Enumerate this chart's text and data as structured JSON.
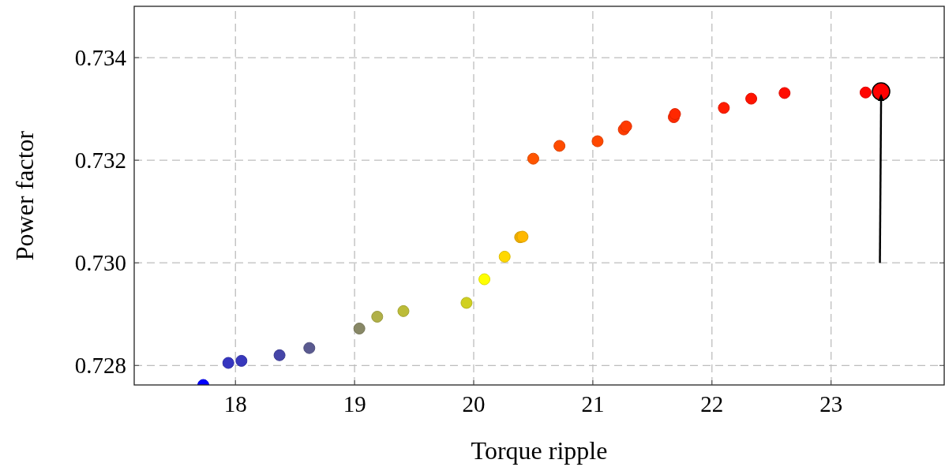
{
  "chart_data": {
    "type": "scatter",
    "xlabel": "Torque ripple",
    "ylabel": "Power factor",
    "xlim": [
      17.15,
      23.95
    ],
    "ylim": [
      0.72762,
      0.735
    ],
    "xticks": [
      18,
      19,
      20,
      21,
      22,
      23
    ],
    "yticks": [
      {
        "value": 0.728,
        "label": "0.728"
      },
      {
        "value": 0.73,
        "label": "0.730"
      },
      {
        "value": 0.732,
        "label": "0.732"
      },
      {
        "value": 0.734,
        "label": "0.734"
      }
    ],
    "grid": true,
    "marker": "circle",
    "series": [
      {
        "x": [
          17.73,
          17.94,
          18.05,
          18.37,
          18.62,
          19.04,
          19.19,
          19.41,
          19.94,
          20.09,
          20.26,
          20.39,
          20.41,
          20.5,
          20.72,
          21.04,
          21.26,
          21.28,
          21.68,
          21.69,
          22.1,
          22.33,
          22.61,
          23.29
        ],
        "values": [
          0.72762,
          0.72805,
          0.72809,
          0.7282,
          0.72834,
          0.72872,
          0.72895,
          0.72906,
          0.72922,
          0.72968,
          0.73012,
          0.7305,
          0.73051,
          0.73203,
          0.73228,
          0.73237,
          0.7326,
          0.73266,
          0.73284,
          0.7329,
          0.73302,
          0.7332,
          0.73331,
          0.73332
        ],
        "colors": [
          "#0000ff",
          "#3535c0",
          "#3838bc",
          "#4545a8",
          "#5a5a90",
          "#888866",
          "#b0b048",
          "#bcbc38",
          "#d0d020",
          "#ffff00",
          "#ffd800",
          "#f0b000",
          "#ffb800",
          "#ff5500",
          "#ff4c00",
          "#ff4800",
          "#ff3c00",
          "#ff3a00",
          "#ff2a00",
          "#ff2800",
          "#ff1c00",
          "#ff1400",
          "#ff0c00",
          "#ff0400"
        ]
      },
      {
        "type": "scatter",
        "x": [
          23.42
        ],
        "values": [
          0.73334
        ],
        "color": "#ff0000",
        "marker": "circle"
      }
    ]
  }
}
